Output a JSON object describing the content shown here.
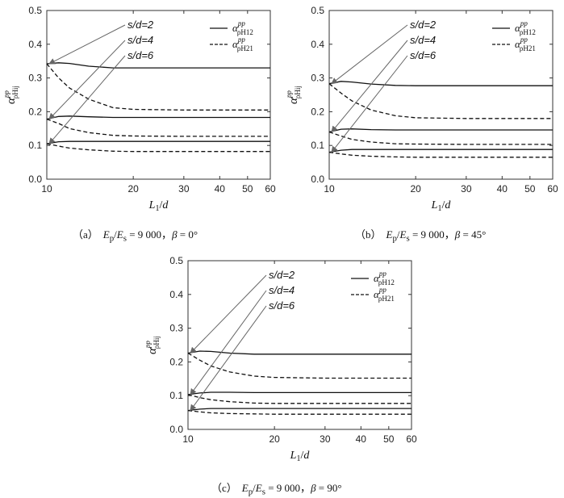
{
  "colors": {
    "line": "#111111",
    "arrow": "#666666"
  },
  "chart_data": [
    {
      "type": "line",
      "caption": {
        "tag": "（a）",
        "ratio": "E",
        "ratio_sub1": "p",
        "ratio_sub2": "s",
        "ratio_value": "= 9 000",
        "beta_label": "β",
        "beta_value": "= 0°"
      },
      "xlabel": "L₁/d",
      "ylabel": "α pp ρHij",
      "x_scale": "log",
      "xlim": [
        10,
        60
      ],
      "ylim": [
        0.0,
        0.5
      ],
      "xticks": [
        10,
        20,
        30,
        40,
        50,
        60
      ],
      "yticks": [
        0.0,
        0.1,
        0.2,
        0.3,
        0.4,
        0.5
      ],
      "annotations": [
        "s/d=2",
        "s/d=4",
        "s/d=6"
      ],
      "legend": {
        "position": "top-right",
        "entries": [
          {
            "symbol": "α",
            "sup": "pp",
            "sub": "ρH12",
            "style": "solid"
          },
          {
            "symbol": "α",
            "sup": "pp",
            "sub": "ρH21",
            "style": "dashed"
          }
        ]
      },
      "series": [
        {
          "group": "s/d=2",
          "legend_ref": 0,
          "style": "solid",
          "x": [
            10,
            11,
            12,
            14,
            17,
            20,
            30,
            40,
            60
          ],
          "y": [
            0.342,
            0.345,
            0.343,
            0.335,
            0.33,
            0.33,
            0.33,
            0.33,
            0.33
          ]
        },
        {
          "group": "s/d=2",
          "legend_ref": 1,
          "style": "dashed",
          "x": [
            10,
            11,
            12,
            14,
            17,
            20,
            30,
            40,
            60
          ],
          "y": [
            0.342,
            0.3,
            0.27,
            0.237,
            0.212,
            0.207,
            0.205,
            0.205,
            0.205
          ]
        },
        {
          "group": "s/d=4",
          "legend_ref": 0,
          "style": "solid",
          "x": [
            10,
            11,
            12,
            14,
            17,
            20,
            30,
            40,
            60
          ],
          "y": [
            0.178,
            0.186,
            0.187,
            0.185,
            0.183,
            0.183,
            0.183,
            0.183,
            0.183
          ]
        },
        {
          "group": "s/d=4",
          "legend_ref": 1,
          "style": "dashed",
          "x": [
            10,
            11,
            12,
            14,
            17,
            20,
            30,
            40,
            60
          ],
          "y": [
            0.178,
            0.165,
            0.15,
            0.138,
            0.13,
            0.128,
            0.127,
            0.127,
            0.127
          ]
        },
        {
          "group": "s/d=6",
          "legend_ref": 0,
          "style": "solid",
          "x": [
            10,
            11,
            12,
            14,
            17,
            20,
            30,
            40,
            60
          ],
          "y": [
            0.105,
            0.111,
            0.112,
            0.112,
            0.112,
            0.112,
            0.112,
            0.112,
            0.112
          ]
        },
        {
          "group": "s/d=6",
          "legend_ref": 1,
          "style": "dashed",
          "x": [
            10,
            11,
            12,
            14,
            17,
            20,
            30,
            40,
            60
          ],
          "y": [
            0.105,
            0.098,
            0.092,
            0.087,
            0.083,
            0.082,
            0.082,
            0.082,
            0.082
          ]
        }
      ]
    },
    {
      "type": "line",
      "caption": {
        "tag": "（b）",
        "ratio": "E",
        "ratio_sub1": "p",
        "ratio_sub2": "s",
        "ratio_value": "= 9 000",
        "beta_label": "β",
        "beta_value": "= 45°"
      },
      "xlabel": "L₁/d",
      "ylabel": "α pp ρHij",
      "x_scale": "log",
      "xlim": [
        10,
        60
      ],
      "ylim": [
        0.0,
        0.5
      ],
      "xticks": [
        10,
        20,
        30,
        40,
        50,
        60
      ],
      "yticks": [
        0.0,
        0.1,
        0.2,
        0.3,
        0.4,
        0.5
      ],
      "annotations": [
        "s/d=2",
        "s/d=4",
        "s/d=6"
      ],
      "legend": {
        "position": "top-right",
        "entries": [
          {
            "symbol": "α",
            "sup": "pp",
            "sub": "ρH12",
            "style": "solid"
          },
          {
            "symbol": "α",
            "sup": "pp",
            "sub": "ρH21",
            "style": "dashed"
          }
        ]
      },
      "series": [
        {
          "group": "s/d=2",
          "legend_ref": 0,
          "style": "solid",
          "x": [
            10,
            11,
            12,
            14,
            17,
            20,
            30,
            40,
            60
          ],
          "y": [
            0.283,
            0.29,
            0.288,
            0.282,
            0.278,
            0.277,
            0.277,
            0.277,
            0.277
          ]
        },
        {
          "group": "s/d=2",
          "legend_ref": 1,
          "style": "dashed",
          "x": [
            10,
            11,
            12,
            14,
            17,
            20,
            30,
            40,
            60
          ],
          "y": [
            0.283,
            0.255,
            0.232,
            0.205,
            0.188,
            0.182,
            0.18,
            0.18,
            0.18
          ]
        },
        {
          "group": "s/d=4",
          "legend_ref": 0,
          "style": "solid",
          "x": [
            10,
            11,
            12,
            14,
            17,
            20,
            30,
            40,
            60
          ],
          "y": [
            0.14,
            0.148,
            0.149,
            0.147,
            0.146,
            0.146,
            0.146,
            0.146,
            0.146
          ]
        },
        {
          "group": "s/d=4",
          "legend_ref": 1,
          "style": "dashed",
          "x": [
            10,
            11,
            12,
            14,
            17,
            20,
            30,
            40,
            60
          ],
          "y": [
            0.14,
            0.128,
            0.118,
            0.11,
            0.105,
            0.104,
            0.103,
            0.103,
            0.103
          ]
        },
        {
          "group": "s/d=6",
          "legend_ref": 0,
          "style": "solid",
          "x": [
            10,
            11,
            12,
            14,
            17,
            20,
            30,
            40,
            60
          ],
          "y": [
            0.08,
            0.086,
            0.088,
            0.088,
            0.088,
            0.088,
            0.088,
            0.088,
            0.088
          ]
        },
        {
          "group": "s/d=6",
          "legend_ref": 1,
          "style": "dashed",
          "x": [
            10,
            11,
            12,
            14,
            17,
            20,
            30,
            40,
            60
          ],
          "y": [
            0.08,
            0.075,
            0.071,
            0.068,
            0.066,
            0.065,
            0.065,
            0.065,
            0.065
          ]
        }
      ]
    },
    {
      "type": "line",
      "caption": {
        "tag": "（c）",
        "ratio": "E",
        "ratio_sub1": "p",
        "ratio_sub2": "s",
        "ratio_value": "= 9 000",
        "beta_label": "β",
        "beta_value": "= 90°"
      },
      "xlabel": "L₁/d",
      "ylabel": "α pp ρHij",
      "x_scale": "log",
      "xlim": [
        10,
        60
      ],
      "ylim": [
        0.0,
        0.5
      ],
      "xticks": [
        10,
        20,
        30,
        40,
        50,
        60
      ],
      "yticks": [
        0.0,
        0.1,
        0.2,
        0.3,
        0.4,
        0.5
      ],
      "annotations": [
        "s/d=2",
        "s/d=4",
        "s/d=6"
      ],
      "legend": {
        "position": "top-right",
        "entries": [
          {
            "symbol": "α",
            "sup": "pp",
            "sub": "ρH12",
            "style": "solid"
          },
          {
            "symbol": "α",
            "sup": "pp",
            "sub": "ρH21",
            "style": "dashed"
          }
        ]
      },
      "series": [
        {
          "group": "s/d=2",
          "legend_ref": 0,
          "style": "solid",
          "x": [
            10,
            11,
            12,
            14,
            17,
            20,
            30,
            40,
            60
          ],
          "y": [
            0.226,
            0.232,
            0.231,
            0.226,
            0.223,
            0.223,
            0.223,
            0.223,
            0.223
          ]
        },
        {
          "group": "s/d=2",
          "legend_ref": 1,
          "style": "dashed",
          "x": [
            10,
            11,
            12,
            14,
            17,
            20,
            30,
            40,
            60
          ],
          "y": [
            0.226,
            0.205,
            0.188,
            0.17,
            0.158,
            0.154,
            0.152,
            0.152,
            0.152
          ]
        },
        {
          "group": "s/d=4",
          "legend_ref": 0,
          "style": "solid",
          "x": [
            10,
            11,
            12,
            14,
            17,
            20,
            30,
            40,
            60
          ],
          "y": [
            0.103,
            0.108,
            0.11,
            0.11,
            0.109,
            0.109,
            0.109,
            0.109,
            0.109
          ]
        },
        {
          "group": "s/d=4",
          "legend_ref": 1,
          "style": "dashed",
          "x": [
            10,
            11,
            12,
            14,
            17,
            20,
            30,
            40,
            60
          ],
          "y": [
            0.103,
            0.094,
            0.088,
            0.082,
            0.078,
            0.077,
            0.077,
            0.077,
            0.077
          ]
        },
        {
          "group": "s/d=6",
          "legend_ref": 0,
          "style": "solid",
          "x": [
            10,
            11,
            12,
            14,
            17,
            20,
            30,
            40,
            60
          ],
          "y": [
            0.056,
            0.06,
            0.062,
            0.062,
            0.062,
            0.062,
            0.062,
            0.062,
            0.062
          ]
        },
        {
          "group": "s/d=6",
          "legend_ref": 1,
          "style": "dashed",
          "x": [
            10,
            11,
            12,
            14,
            17,
            20,
            30,
            40,
            60
          ],
          "y": [
            0.056,
            0.052,
            0.049,
            0.047,
            0.046,
            0.045,
            0.045,
            0.045,
            0.045
          ]
        }
      ]
    }
  ]
}
